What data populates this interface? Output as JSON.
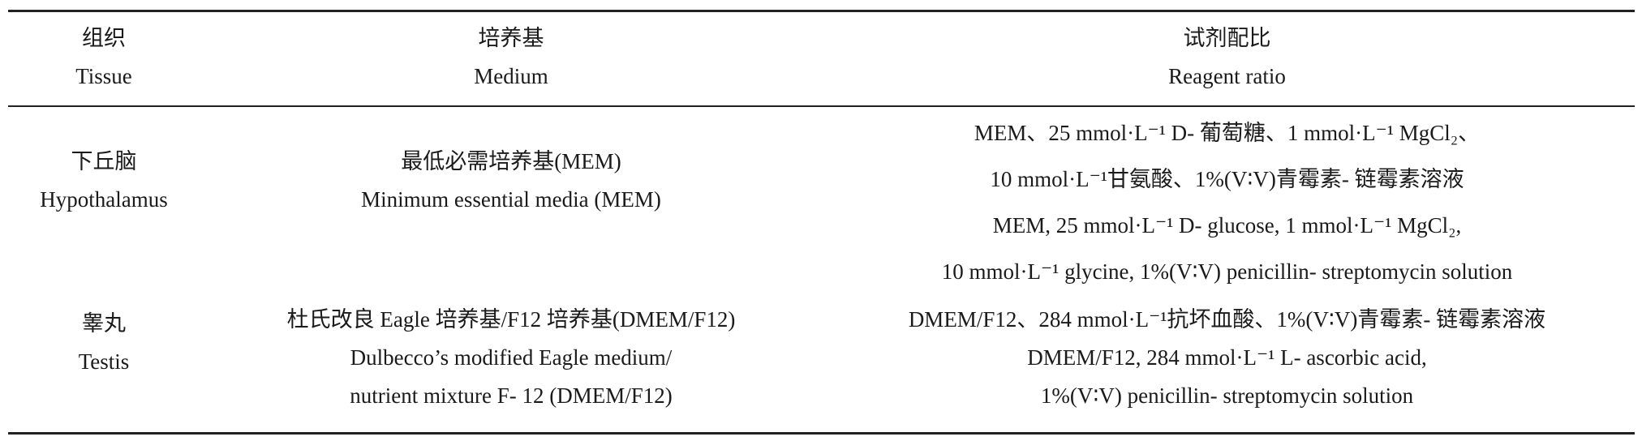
{
  "table": {
    "headers": [
      {
        "zh": "组织",
        "en": "Tissue"
      },
      {
        "zh": "培养基",
        "en": "Medium"
      },
      {
        "zh": "试剂配比",
        "en": "Reagent ratio"
      }
    ],
    "rows": [
      {
        "tissue": {
          "zh": "下丘脑",
          "en": "Hypothalamus"
        },
        "medium": {
          "zh": "最低必需培养基(MEM)",
          "en": [
            "Minimum essential media (MEM)"
          ]
        },
        "ratio_lines": [
          "MEM、25 mmol·L⁻¹ D- 葡萄糖、1 mmol·L⁻¹ MgCl₂、",
          "10 mmol·L⁻¹甘氨酸、1%(V∶V)青霉素- 链霉素溶液",
          "MEM, 25 mmol·L⁻¹ D- glucose, 1 mmol·L⁻¹ MgCl₂,",
          "10 mmol·L⁻¹ glycine, 1%(V∶V) penicillin- streptomycin solution"
        ]
      },
      {
        "tissue": {
          "zh": "睾丸",
          "en": "Testis"
        },
        "medium": {
          "zh": "杜氏改良 Eagle 培养基/F12 培养基(DMEM/F12)",
          "en": [
            "Dulbecco’s modified Eagle medium/",
            "nutrient mixture F- 12 (DMEM/F12)"
          ]
        },
        "ratio_lines": [
          "DMEM/F12、284 mmol·L⁻¹抗坏血酸、1%(V∶V)青霉素- 链霉素溶液",
          "DMEM/F12, 284 mmol·L⁻¹ L- ascorbic acid,",
          "1%(V∶V) penicillin- streptomycin solution"
        ]
      }
    ]
  }
}
